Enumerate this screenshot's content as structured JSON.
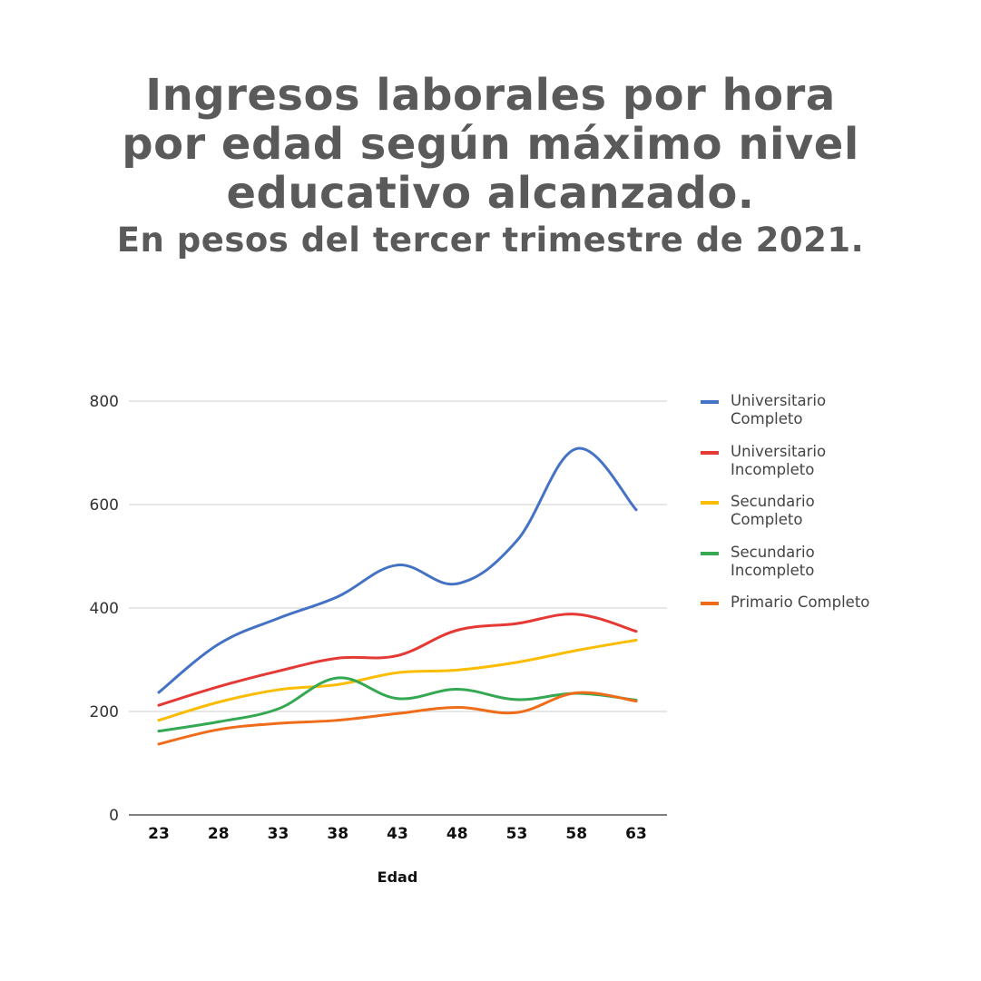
{
  "title_lines": [
    "Ingresos laborales por hora",
    "por edad según máximo nivel",
    "educativo alcanzado."
  ],
  "subtitle": "En pesos del tercer trimestre de 2021.",
  "chart_data": {
    "type": "line",
    "title": "Ingresos laborales por hora por edad según máximo nivel educativo alcanzado.",
    "subtitle": "En pesos del tercer trimestre de 2021.",
    "xlabel": "Edad",
    "ylabel": "",
    "x": [
      23,
      28,
      33,
      38,
      43,
      48,
      53,
      58,
      63
    ],
    "x_ticks": [
      "23",
      "28",
      "33",
      "38",
      "43",
      "48",
      "53",
      "58",
      "63"
    ],
    "ylim": [
      0,
      800
    ],
    "y_ticks": [
      "0",
      "200",
      "400",
      "600",
      "800"
    ],
    "grid": true,
    "legend_position": "right",
    "series": [
      {
        "name": "Universitario Completo",
        "name_lines": [
          "Universitario",
          "Completo"
        ],
        "color": "#4472c4",
        "values": [
          237,
          330,
          380,
          422,
          483,
          447,
          530,
          708,
          590
        ]
      },
      {
        "name": "Universitario Incompleto",
        "name_lines": [
          "Universitario",
          "Incompleto"
        ],
        "color": "#e53935",
        "values": [
          212,
          248,
          278,
          303,
          308,
          357,
          370,
          388,
          355
        ]
      },
      {
        "name": "Secundario Completo",
        "name_lines": [
          "Secundario",
          "Completo"
        ],
        "color": "#fbbc04",
        "values": [
          183,
          218,
          242,
          252,
          275,
          280,
          295,
          318,
          338
        ]
      },
      {
        "name": "Secundario Incompleto",
        "name_lines": [
          "Secundario",
          "Incompleto"
        ],
        "color": "#34a853",
        "values": [
          162,
          180,
          205,
          265,
          225,
          243,
          223,
          235,
          222
        ]
      },
      {
        "name": "Primario Completo",
        "name_lines": [
          "Primario Completo"
        ],
        "color": "#ef6c1a",
        "values": [
          137,
          165,
          177,
          183,
          196,
          208,
          198,
          236,
          220
        ]
      }
    ]
  }
}
